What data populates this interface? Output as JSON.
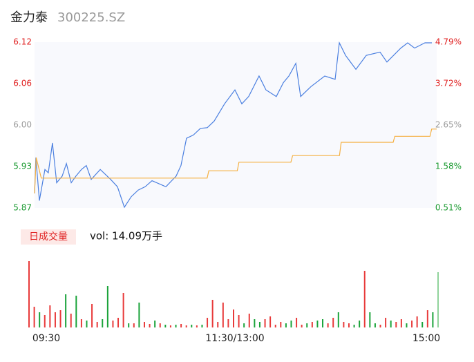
{
  "chart_data": {
    "type": "line",
    "title": "金力泰",
    "subtitle": "300225.SZ",
    "ylim": [
      5.87,
      6.12
    ],
    "yticks": [
      {
        "value": 6.12,
        "label": "6.12"
      },
      {
        "value": 6.0575,
        "label": "6.06"
      },
      {
        "value": 5.995,
        "label": "6.00"
      },
      {
        "value": 5.9325,
        "label": "5.93"
      },
      {
        "value": 5.87,
        "label": "5.87"
      }
    ],
    "ytick_colors": [
      "#e02020",
      "#e02020",
      "#999999",
      "#1a9a30",
      "#1a9a30"
    ],
    "y2lim": [
      0.51,
      4.79
    ],
    "y2ticks": [
      {
        "value": 4.79,
        "label": "4.79%"
      },
      {
        "value": 3.72,
        "label": "3.72%"
      },
      {
        "value": 2.65,
        "label": "2.65%"
      },
      {
        "value": 1.58,
        "label": "1.58%"
      },
      {
        "value": 0.51,
        "label": "0.51%"
      }
    ],
    "xlim": [
      0,
      240
    ],
    "xticks": [
      {
        "value": 0,
        "label": "09:30"
      },
      {
        "value": 120,
        "label": "11:30/13:00"
      },
      {
        "value": 240,
        "label": "15:00"
      }
    ],
    "series": [
      {
        "color": "#4a7fe0",
        "x": [
          0,
          0.8,
          2.9,
          6.2,
          8.2,
          10.7,
          13.2,
          16.5,
          19.0,
          21.9,
          24.7,
          28.0,
          30.9,
          33.8,
          39.2,
          45.4,
          49.5,
          53.6,
          57.7,
          61.9,
          66.0,
          70.1,
          78.4,
          84.5,
          87.4,
          90.7,
          94.8,
          99.0,
          103.1,
          107.2,
          113.4,
          119.6,
          123.7,
          127.8,
          134.0,
          138.1,
          144.3,
          148.5,
          151.8,
          155.9,
          158.8,
          165.0,
          173.2,
          179.4,
          181.9,
          185.6,
          191.8,
          198.0,
          206.2,
          210.3,
          218.6,
          222.7,
          226.8,
          233.0,
          237.1
        ],
        "values": [
          5.892,
          5.946,
          5.881,
          5.928,
          5.923,
          5.968,
          5.908,
          5.918,
          5.937,
          5.908,
          5.918,
          5.928,
          5.934,
          5.913,
          5.928,
          5.913,
          5.902,
          5.871,
          5.887,
          5.897,
          5.902,
          5.911,
          5.902,
          5.918,
          5.934,
          5.975,
          5.98,
          5.99,
          5.991,
          6.001,
          6.027,
          6.048,
          6.027,
          6.038,
          6.069,
          6.048,
          6.038,
          6.059,
          6.069,
          6.088,
          6.038,
          6.053,
          6.069,
          6.064,
          6.119,
          6.1,
          6.079,
          6.1,
          6.105,
          6.09,
          6.111,
          6.119,
          6.111,
          6.119,
          6.119
        ]
      },
      {
        "color": "#f5b041",
        "x": [
          0,
          1,
          4,
          103,
          104,
          121,
          122,
          153,
          154,
          182,
          183,
          214,
          215,
          236,
          237,
          240
        ],
        "values": [
          5.892,
          5.946,
          5.915,
          5.915,
          5.926,
          5.926,
          5.939,
          5.939,
          5.949,
          5.949,
          5.969,
          5.969,
          5.978,
          5.978,
          5.989,
          5.989
        ]
      }
    ],
    "volume": {
      "legend": "日成交量",
      "label": "vol: 14.09万手",
      "values": [
        96,
        30,
        22,
        18,
        32,
        22,
        25,
        48,
        20,
        46,
        12,
        10,
        34,
        8,
        12,
        60,
        10,
        14,
        50,
        6,
        6,
        36,
        8,
        5,
        10,
        6,
        4,
        3,
        4,
        5,
        3,
        4,
        3,
        4,
        14,
        40,
        8,
        36,
        12,
        26,
        18,
        6,
        20,
        12,
        8,
        12,
        16,
        4,
        8,
        6,
        10,
        14,
        4,
        6,
        8,
        10,
        12,
        6,
        14,
        22,
        8,
        6,
        4,
        10,
        82,
        22,
        6,
        4,
        14,
        10,
        8,
        12,
        6,
        10,
        16,
        8,
        25,
        22,
        80
      ],
      "colors": [
        "#e83a3a",
        "#e83a3a",
        "#1aa33a",
        "#e83a3a",
        "#e83a3a",
        "#e83a3a",
        "#e83a3a",
        "#1aa33a",
        "#e83a3a",
        "#1aa33a",
        "#e83a3a",
        "#1aa33a",
        "#e83a3a",
        "#e83a3a",
        "#1aa33a",
        "#1aa33a",
        "#e83a3a",
        "#e83a3a",
        "#e83a3a",
        "#1aa33a",
        "#e83a3a",
        "#1aa33a",
        "#e83a3a",
        "#e83a3a",
        "#1aa33a",
        "#e83a3a",
        "#1aa33a",
        "#e83a3a",
        "#1aa33a",
        "#e83a3a",
        "#e83a3a",
        "#1aa33a",
        "#e83a3a",
        "#1aa33a",
        "#e83a3a",
        "#e83a3a",
        "#e83a3a",
        "#e83a3a",
        "#e83a3a",
        "#e83a3a",
        "#e83a3a",
        "#1aa33a",
        "#e83a3a",
        "#1aa33a",
        "#1aa33a",
        "#e83a3a",
        "#e83a3a",
        "#e83a3a",
        "#e83a3a",
        "#1aa33a",
        "#1aa33a",
        "#e83a3a",
        "#e83a3a",
        "#1aa33a",
        "#e83a3a",
        "#1aa33a",
        "#1aa33a",
        "#e83a3a",
        "#e83a3a",
        "#1aa33a",
        "#e83a3a",
        "#e83a3a",
        "#1aa33a",
        "#1aa33a",
        "#e83a3a",
        "#1aa33a",
        "#1aa33a",
        "#e83a3a",
        "#e83a3a",
        "#1aa33a",
        "#e83a3a",
        "#e83a3a",
        "#1aa33a",
        "#e83a3a",
        "#e83a3a",
        "#1aa33a",
        "#e83a3a",
        "#1aa33a",
        "#8fd39a"
      ]
    }
  }
}
